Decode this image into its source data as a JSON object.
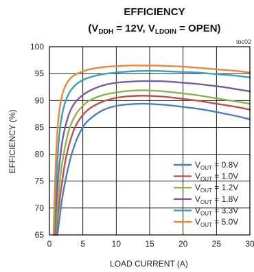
{
  "chart_data": {
    "type": "line",
    "title": "EFFICIENCY",
    "subtitle": {
      "open": "(V",
      "sub1": "DDH",
      "mid": " = 12V, V",
      "sub2": "LDOIN",
      "close": " = OPEN)"
    },
    "tag": "toc02",
    "xlabel": "LOAD CURRENT (A)",
    "ylabel": "EFFICIENCY (%)",
    "xlim": [
      0,
      30
    ],
    "ylim": [
      65,
      100
    ],
    "xticks": [
      "0",
      "5",
      "10",
      "15",
      "20",
      "25",
      "30"
    ],
    "yticks": [
      "65",
      "70",
      "75",
      "80",
      "85",
      "90",
      "95",
      "100"
    ],
    "grid": true,
    "legend_position": "bottom-right",
    "series": [
      {
        "name_prefix": "V",
        "name_sub": "OUT",
        "name_suffix": " = 0.8V",
        "color": "#4a7fc1",
        "x": [
          1.2,
          1.5,
          2,
          3,
          4,
          5,
          6,
          8,
          10,
          12,
          14,
          16,
          18,
          20,
          22,
          24,
          26,
          28,
          30
        ],
        "y": [
          65,
          68,
          72.5,
          78.5,
          82.5,
          85,
          86.5,
          88.2,
          89,
          89.3,
          89.4,
          89.3,
          89.1,
          88.8,
          88.5,
          88.1,
          87.6,
          87.1,
          86.5
        ]
      },
      {
        "name_prefix": "V",
        "name_sub": "OUT",
        "name_suffix": " = 1.0V",
        "color": "#c0504d",
        "x": [
          1.0,
          1.3,
          1.8,
          2.5,
          3.5,
          4.5,
          6,
          8,
          10,
          12,
          14,
          16,
          18,
          20,
          22,
          24,
          26,
          28,
          30
        ],
        "y": [
          65,
          69,
          74,
          79.5,
          84,
          86.5,
          88.5,
          89.8,
          90.5,
          90.8,
          90.9,
          90.8,
          90.6,
          90.3,
          90,
          89.6,
          89.2,
          88.8,
          88.3
        ]
      },
      {
        "name_prefix": "V",
        "name_sub": "OUT",
        "name_suffix": " = 1.2V",
        "color": "#8fb34a",
        "x": [
          0.9,
          1.2,
          1.6,
          2.2,
          3,
          4,
          5,
          6,
          8,
          10,
          12,
          14,
          16,
          18,
          20,
          22,
          24,
          26,
          28,
          30
        ],
        "y": [
          65,
          70,
          75.5,
          80.5,
          84.8,
          87.5,
          89,
          90,
          91,
          91.5,
          91.8,
          91.9,
          91.8,
          91.6,
          91.3,
          91,
          90.6,
          90.2,
          89.8,
          89.4
        ]
      },
      {
        "name_prefix": "V",
        "name_sub": "OUT",
        "name_suffix": " = 1.8V",
        "color": "#7b5a9e",
        "x": [
          0.8,
          1.0,
          1.4,
          2,
          2.8,
          3.5,
          4.5,
          6,
          8,
          10,
          12,
          14,
          16,
          18,
          20,
          22,
          24,
          26,
          28,
          30
        ],
        "y": [
          65,
          70.5,
          77,
          83,
          87,
          89,
          90.5,
          91.8,
          92.8,
          93.3,
          93.5,
          93.6,
          93.6,
          93.5,
          93.3,
          93.1,
          92.8,
          92.5,
          92.1,
          91.7
        ]
      },
      {
        "name_prefix": "V",
        "name_sub": "OUT",
        "name_suffix": " = 3.3V",
        "color": "#3aa0b4",
        "x": [
          0.7,
          0.9,
          1.2,
          1.6,
          2.2,
          3,
          4,
          5,
          6,
          8,
          10,
          12,
          14,
          16,
          18,
          20,
          22,
          24,
          26,
          28,
          30
        ],
        "y": [
          65,
          72,
          79,
          85,
          89,
          91.5,
          93,
          93.8,
          94.3,
          94.9,
          95.2,
          95.4,
          95.5,
          95.5,
          95.4,
          95.3,
          95.2,
          95,
          94.8,
          94.6,
          94.3
        ]
      },
      {
        "name_prefix": "V",
        "name_sub": "OUT",
        "name_suffix": " = 5.0V",
        "color": "#e8893a",
        "x": [
          0.6,
          0.8,
          1.0,
          1.3,
          1.8,
          2.5,
          3.2,
          4,
          5,
          6,
          8,
          10,
          12,
          14,
          16,
          18,
          20,
          22,
          24,
          26,
          28,
          30
        ],
        "y": [
          65,
          73,
          80,
          86,
          90.5,
          93,
          94.2,
          94.9,
          95.4,
          95.8,
          96.2,
          96.4,
          96.5,
          96.5,
          96.5,
          96.4,
          96.3,
          96.1,
          95.9,
          95.7,
          95.5,
          95.2
        ]
      }
    ]
  }
}
